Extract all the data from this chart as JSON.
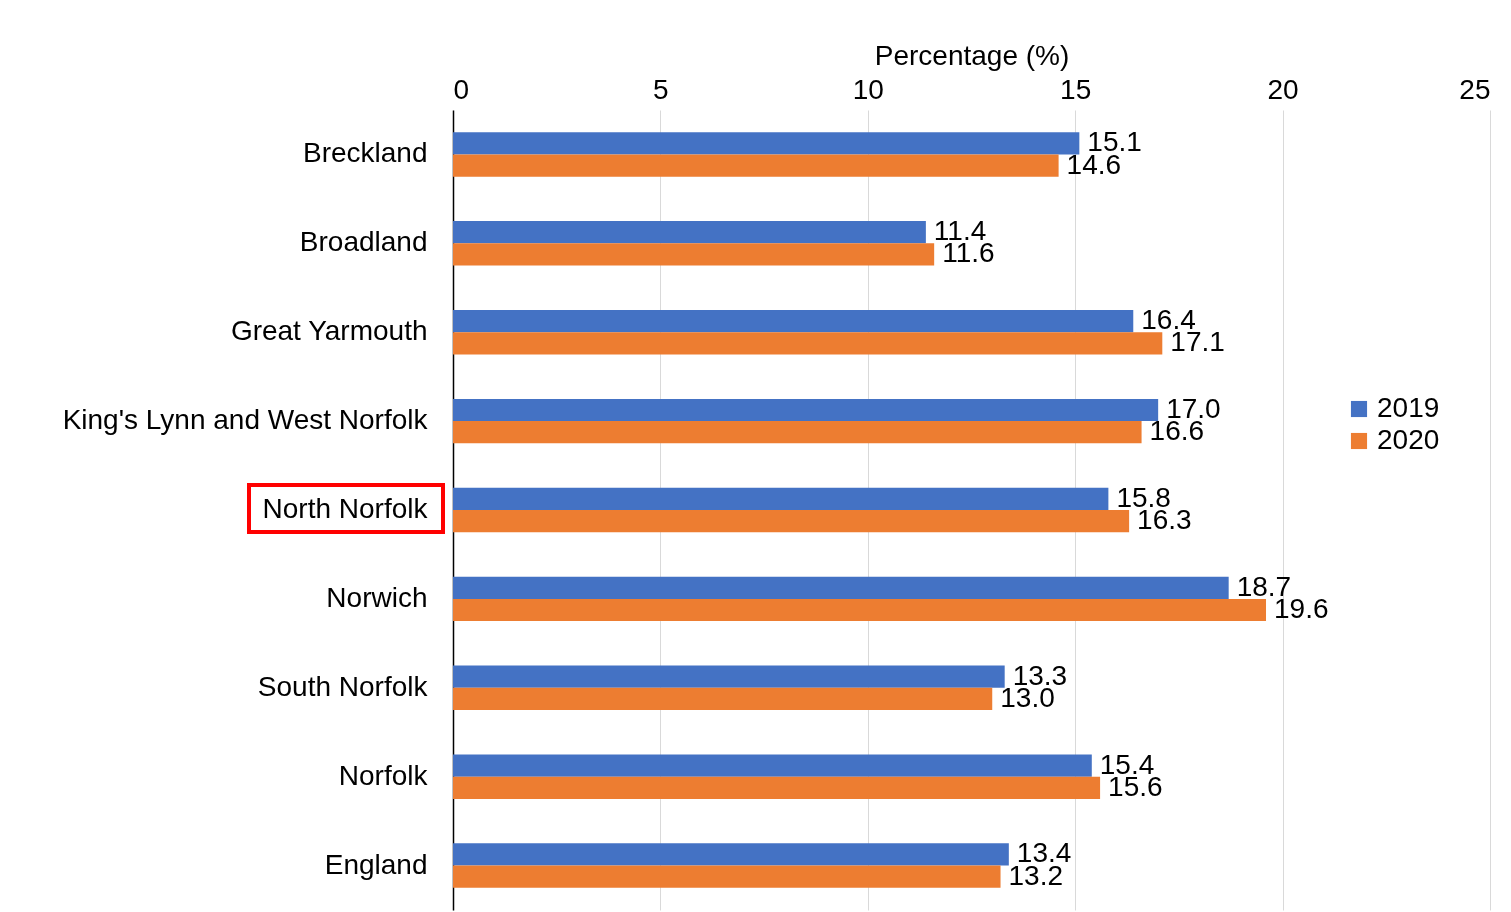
{
  "chart_data": {
    "type": "bar",
    "orientation": "horizontal",
    "xlabel": "Percentage (%)",
    "categories": [
      "Breckland",
      "Broadland",
      "Great Yarmouth",
      "King's Lynn and West Norfolk",
      "North Norfolk",
      "Norwich",
      "South Norfolk",
      "Norfolk",
      "England"
    ],
    "series": [
      {
        "name": "2019",
        "color": "#4472c4",
        "values": [
          15.1,
          11.4,
          16.4,
          17.0,
          15.8,
          18.7,
          13.3,
          15.4,
          13.4
        ],
        "value_labels": [
          "15.1",
          "11.4",
          "16.4",
          "17.0",
          "15.8",
          "18.7",
          "13.3",
          "15.4",
          "13.4"
        ]
      },
      {
        "name": "2020",
        "color": "#ed7d31",
        "values": [
          14.6,
          11.6,
          17.1,
          16.6,
          16.3,
          19.6,
          13.0,
          15.6,
          13.2
        ],
        "value_labels": [
          "14.6",
          "11.6",
          "17.1",
          "16.6",
          "16.3",
          "19.6",
          "13.0",
          "15.6",
          "13.2"
        ]
      }
    ],
    "xlim": [
      0,
      25
    ],
    "xticks": [
      0,
      5,
      10,
      15,
      20,
      25
    ],
    "grid": "x",
    "legend": "right"
  }
}
